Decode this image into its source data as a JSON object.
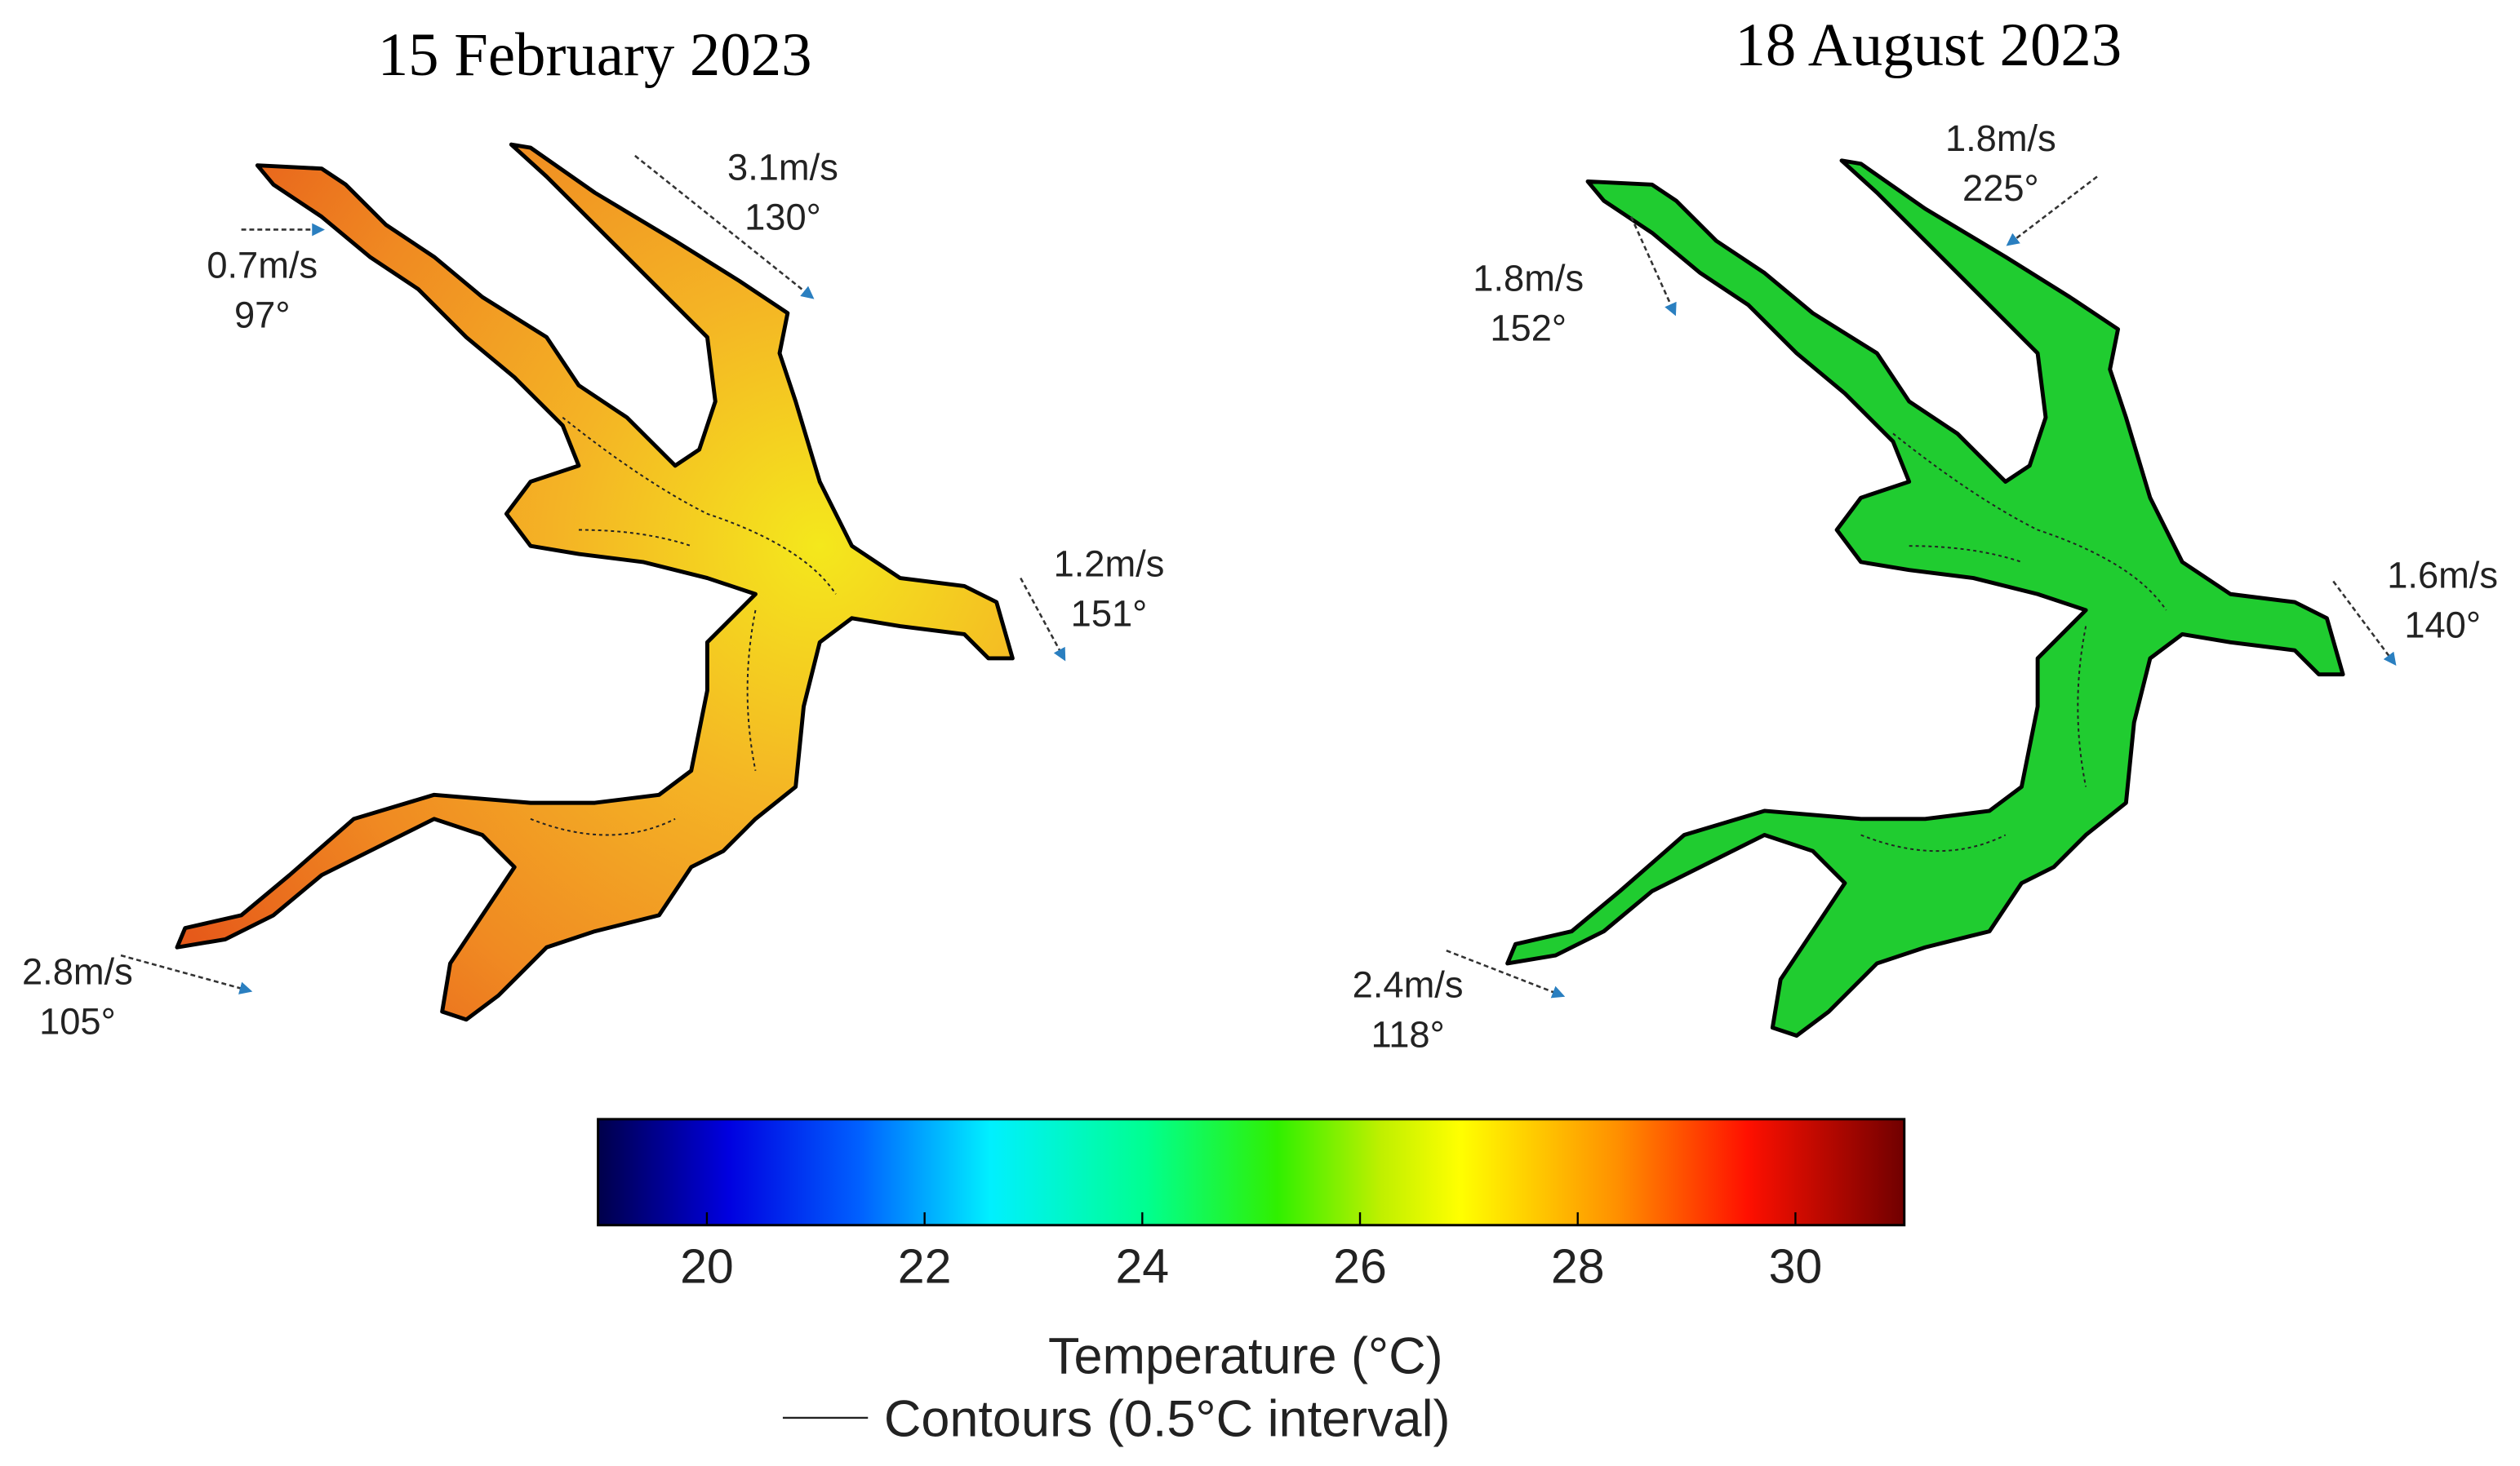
{
  "panels": [
    {
      "title": "15 February 2023",
      "winds": [
        {
          "speed": "0.7m/s",
          "direction": "97°"
        },
        {
          "speed": "3.1m/s",
          "direction": "130°"
        },
        {
          "speed": "1.2m/s",
          "direction": "151°"
        },
        {
          "speed": "2.8m/s",
          "direction": "105°"
        }
      ]
    },
    {
      "title": "18 August 2023",
      "winds": [
        {
          "speed": "1.8m/s",
          "direction": "152°"
        },
        {
          "speed": "1.8m/s",
          "direction": "225°"
        },
        {
          "speed": "1.6m/s",
          "direction": "140°"
        },
        {
          "speed": "2.4m/s",
          "direction": "118°"
        }
      ]
    }
  ],
  "colorbar": {
    "label": "Temperature (°C)",
    "lim": [
      19,
      31
    ],
    "ticks": [
      20,
      22,
      24,
      26,
      28,
      30
    ]
  },
  "legend": {
    "contours": "Contours (0.5°C interval)"
  }
}
